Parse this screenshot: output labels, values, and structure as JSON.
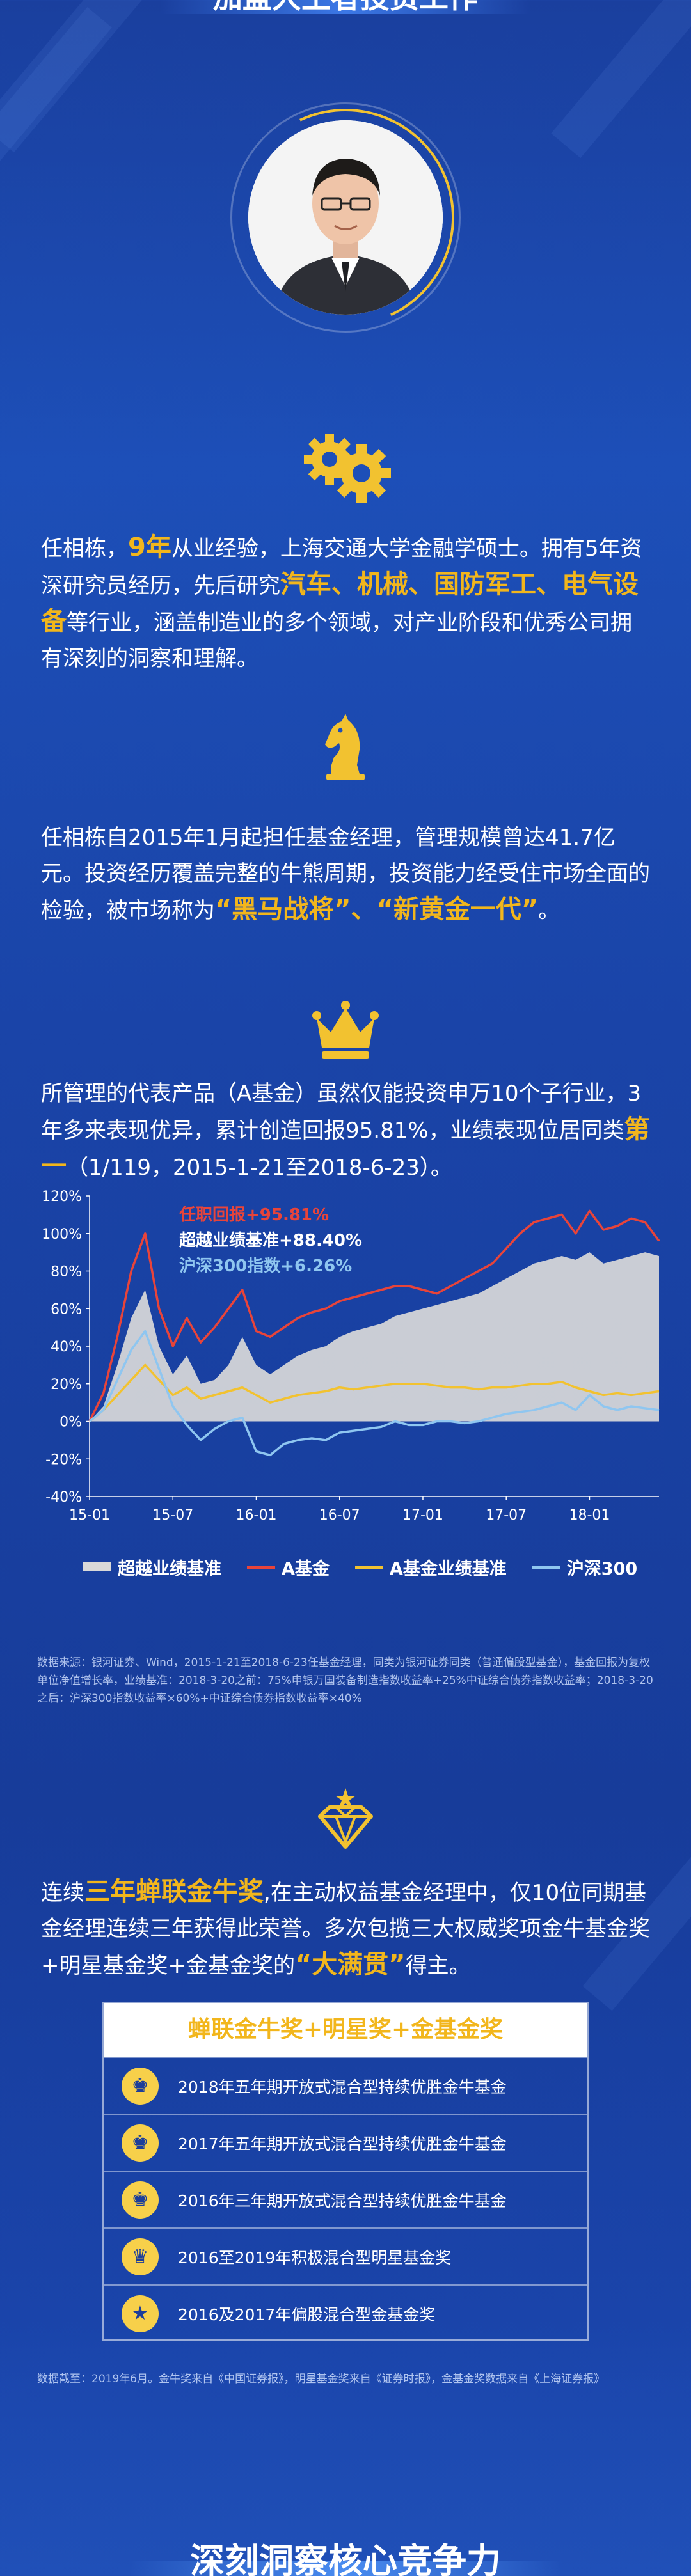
{
  "header": {
    "title": "加盟大王者投资工作"
  },
  "profile": {
    "p1": {
      "a": "任相栋，",
      "years": "9年",
      "b": "从业经验，上海交通大学金融学硕士。拥有5年资深研究员经历，先后研究",
      "sectors": "汽车、机械、国防军工、电气设备",
      "c": "等行业，涵盖制造业的多个领域，对产业阶段和优秀公司拥有深刻的洞察和理解。"
    },
    "p2": {
      "a": "任相栋自2015年1月起担任基金经理，管理规模曾达41.7亿元。投资经历覆盖完整的牛熊周期，投资能力经受住市场全面的检验，被市场称为",
      "nick1": "“黑马战将”",
      "mid": "、",
      "nick2": "“新黄金一代”",
      "end": "。"
    },
    "p3": {
      "a": "所管理的代表产品（A基金）虽然仅能投资申万10个子行业，3年多来表现优异，累计创造回报95.81%，业绩表现位居同类",
      "rank": "第一",
      "b": "（1/119，2015-1-21至2018-6-23）。"
    }
  },
  "chart_data": {
    "type": "line",
    "x": [
      "15-01",
      "15-02",
      "15-03",
      "15-04",
      "15-05",
      "15-06",
      "15-07",
      "15-08",
      "15-09",
      "15-10",
      "15-11",
      "15-12",
      "16-01",
      "16-02",
      "16-03",
      "16-04",
      "16-05",
      "16-06",
      "16-07",
      "16-08",
      "16-09",
      "16-10",
      "16-11",
      "16-12",
      "17-01",
      "17-02",
      "17-03",
      "17-04",
      "17-05",
      "17-06",
      "17-07",
      "17-08",
      "17-09",
      "17-10",
      "17-11",
      "17-12",
      "18-01",
      "18-02",
      "18-03",
      "18-04",
      "18-05",
      "18-06"
    ],
    "xticks": [
      "15-01",
      "15-07",
      "16-01",
      "16-07",
      "17-01",
      "17-07",
      "18-01"
    ],
    "yticks": [
      "120%",
      "100%",
      "80%",
      "60%",
      "40%",
      "20%",
      "0%",
      "-20%",
      "-40%"
    ],
    "ylim": [
      -40,
      120
    ],
    "annotations": [
      {
        "text": "任职回报+95.81%",
        "color": "#e8443a"
      },
      {
        "text": "超越业绩基准+88.40%",
        "color": "#ffffff"
      },
      {
        "text": "沪深300指数+6.26%",
        "color": "#8fc6f0"
      }
    ],
    "series": [
      {
        "name": "超越业绩基准",
        "type": "area",
        "color": "#d9d9d9",
        "values": [
          0,
          8,
          30,
          55,
          70,
          40,
          25,
          35,
          20,
          22,
          30,
          45,
          30,
          25,
          30,
          35,
          38,
          40,
          45,
          48,
          50,
          52,
          56,
          58,
          60,
          62,
          64,
          66,
          68,
          72,
          76,
          80,
          84,
          86,
          88,
          86,
          90,
          84,
          86,
          88,
          90,
          88
        ]
      },
      {
        "name": "A基金",
        "color": "#e8443a",
        "values": [
          0,
          15,
          45,
          80,
          100,
          60,
          40,
          55,
          42,
          50,
          60,
          70,
          48,
          45,
          50,
          55,
          58,
          60,
          64,
          66,
          68,
          70,
          72,
          72,
          70,
          68,
          72,
          76,
          80,
          84,
          92,
          100,
          106,
          108,
          110,
          100,
          112,
          102,
          104,
          108,
          106,
          96
        ]
      },
      {
        "name": "A基金业绩基准",
        "color": "#f2c230",
        "values": [
          0,
          6,
          14,
          22,
          30,
          22,
          14,
          18,
          12,
          14,
          16,
          18,
          14,
          10,
          12,
          14,
          15,
          16,
          18,
          17,
          18,
          19,
          20,
          20,
          20,
          19,
          18,
          18,
          17,
          18,
          18,
          19,
          20,
          20,
          21,
          18,
          16,
          14,
          15,
          14,
          15,
          16
        ]
      },
      {
        "name": "沪深300",
        "color": "#8fc6f0",
        "values": [
          0,
          6,
          22,
          38,
          48,
          28,
          8,
          -2,
          -10,
          -4,
          0,
          2,
          -16,
          -18,
          -12,
          -10,
          -9,
          -10,
          -6,
          -5,
          -4,
          -3,
          0,
          -2,
          -2,
          0,
          0,
          -1,
          0,
          2,
          4,
          5,
          6,
          8,
          10,
          6,
          14,
          8,
          6,
          8,
          7,
          6
        ]
      }
    ]
  },
  "notes": {
    "chart_note": "数据来源：银河证券、Wind，2015-1-21至2018-6-23任基金经理，同类为银河证券同类（普通偏股型基金），基金回报为复权单位净值增长率，业绩基准：2018-3-20之前：75%申银万国装备制造指数收益率+25%中证综合债券指数收益率；2018-3-20之后：沪深300指数收益率×60%+中证综合债券指数收益率×40%",
    "awards_note": "数据截至：2019年6月。金牛奖来自《中国证券报》，明星基金奖来自《证券时报》，金基金奖数据来自《上海证券报》"
  },
  "awards_intro": {
    "a": "连续",
    "hl": "三年蝉联金牛奖",
    "b": ",在主动权益基金经理中，仅10位同期基金经理连续三年获得此荣誉。多次包揽三大权威奖项金牛基金奖+明星基金奖+金基金奖的",
    "hl2": "“大满贯”",
    "c": "得主。"
  },
  "awards": {
    "header": "蝉联金牛奖+明星奖+金基金奖",
    "items": [
      {
        "label": "2018年五年期开放式混合型持续优胜金牛基金",
        "icon": "trophy-icon"
      },
      {
        "label": "2017年五年期开放式混合型持续优胜金牛基金",
        "icon": "trophy-icon"
      },
      {
        "label": "2016年三年期开放式混合型持续优胜金牛基金",
        "icon": "trophy-icon"
      },
      {
        "label": "2016至2019年积极混合型明星基金奖",
        "icon": "crown-icon"
      },
      {
        "label": "2016及2017年偏股混合型金基金奖",
        "icon": "medal-icon"
      }
    ]
  },
  "footer": {
    "title": "深刻洞察核心竞争力"
  },
  "colors": {
    "accent": "#f2b61c",
    "red": "#e8443a",
    "blue": "#8fc6f0",
    "gray": "#d9d9d9"
  }
}
